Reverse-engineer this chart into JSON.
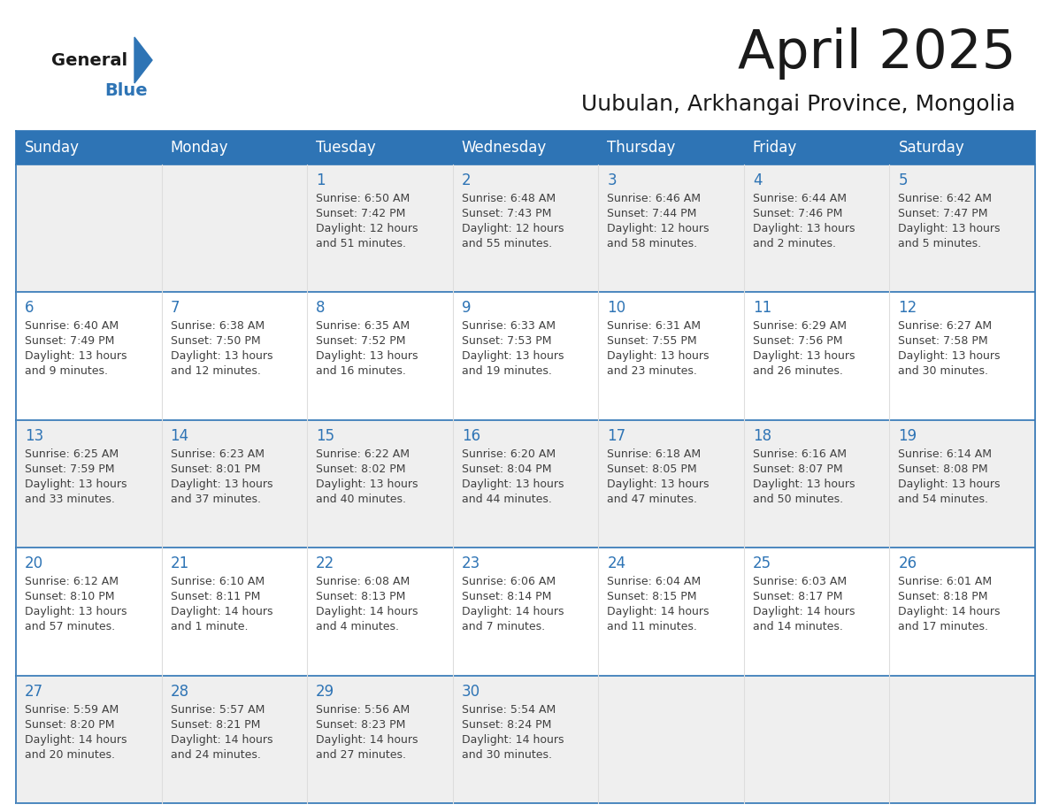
{
  "title": "April 2025",
  "subtitle": "Uubulan, Arkhangai Province, Mongolia",
  "days_of_week": [
    "Sunday",
    "Monday",
    "Tuesday",
    "Wednesday",
    "Thursday",
    "Friday",
    "Saturday"
  ],
  "header_bg_color": "#2E74B5",
  "header_text_color": "#FFFFFF",
  "cell_bg_even": "#EFEFEF",
  "cell_bg_odd": "#FFFFFF",
  "day_number_color": "#2E74B5",
  "text_color": "#404040",
  "border_color": "#2E74B5",
  "col_line_color": "#DDDDDD",
  "calendar_data": [
    [
      {
        "day": "",
        "sunrise": "",
        "sunset": "",
        "daylight": ""
      },
      {
        "day": "",
        "sunrise": "",
        "sunset": "",
        "daylight": ""
      },
      {
        "day": "1",
        "sunrise": "Sunrise: 6:50 AM",
        "sunset": "Sunset: 7:42 PM",
        "daylight": "Daylight: 12 hours and 51 minutes."
      },
      {
        "day": "2",
        "sunrise": "Sunrise: 6:48 AM",
        "sunset": "Sunset: 7:43 PM",
        "daylight": "Daylight: 12 hours and 55 minutes."
      },
      {
        "day": "3",
        "sunrise": "Sunrise: 6:46 AM",
        "sunset": "Sunset: 7:44 PM",
        "daylight": "Daylight: 12 hours and 58 minutes."
      },
      {
        "day": "4",
        "sunrise": "Sunrise: 6:44 AM",
        "sunset": "Sunset: 7:46 PM",
        "daylight": "Daylight: 13 hours and 2 minutes."
      },
      {
        "day": "5",
        "sunrise": "Sunrise: 6:42 AM",
        "sunset": "Sunset: 7:47 PM",
        "daylight": "Daylight: 13 hours and 5 minutes."
      }
    ],
    [
      {
        "day": "6",
        "sunrise": "Sunrise: 6:40 AM",
        "sunset": "Sunset: 7:49 PM",
        "daylight": "Daylight: 13 hours and 9 minutes."
      },
      {
        "day": "7",
        "sunrise": "Sunrise: 6:38 AM",
        "sunset": "Sunset: 7:50 PM",
        "daylight": "Daylight: 13 hours and 12 minutes."
      },
      {
        "day": "8",
        "sunrise": "Sunrise: 6:35 AM",
        "sunset": "Sunset: 7:52 PM",
        "daylight": "Daylight: 13 hours and 16 minutes."
      },
      {
        "day": "9",
        "sunrise": "Sunrise: 6:33 AM",
        "sunset": "Sunset: 7:53 PM",
        "daylight": "Daylight: 13 hours and 19 minutes."
      },
      {
        "day": "10",
        "sunrise": "Sunrise: 6:31 AM",
        "sunset": "Sunset: 7:55 PM",
        "daylight": "Daylight: 13 hours and 23 minutes."
      },
      {
        "day": "11",
        "sunrise": "Sunrise: 6:29 AM",
        "sunset": "Sunset: 7:56 PM",
        "daylight": "Daylight: 13 hours and 26 minutes."
      },
      {
        "day": "12",
        "sunrise": "Sunrise: 6:27 AM",
        "sunset": "Sunset: 7:58 PM",
        "daylight": "Daylight: 13 hours and 30 minutes."
      }
    ],
    [
      {
        "day": "13",
        "sunrise": "Sunrise: 6:25 AM",
        "sunset": "Sunset: 7:59 PM",
        "daylight": "Daylight: 13 hours and 33 minutes."
      },
      {
        "day": "14",
        "sunrise": "Sunrise: 6:23 AM",
        "sunset": "Sunset: 8:01 PM",
        "daylight": "Daylight: 13 hours and 37 minutes."
      },
      {
        "day": "15",
        "sunrise": "Sunrise: 6:22 AM",
        "sunset": "Sunset: 8:02 PM",
        "daylight": "Daylight: 13 hours and 40 minutes."
      },
      {
        "day": "16",
        "sunrise": "Sunrise: 6:20 AM",
        "sunset": "Sunset: 8:04 PM",
        "daylight": "Daylight: 13 hours and 44 minutes."
      },
      {
        "day": "17",
        "sunrise": "Sunrise: 6:18 AM",
        "sunset": "Sunset: 8:05 PM",
        "daylight": "Daylight: 13 hours and 47 minutes."
      },
      {
        "day": "18",
        "sunrise": "Sunrise: 6:16 AM",
        "sunset": "Sunset: 8:07 PM",
        "daylight": "Daylight: 13 hours and 50 minutes."
      },
      {
        "day": "19",
        "sunrise": "Sunrise: 6:14 AM",
        "sunset": "Sunset: 8:08 PM",
        "daylight": "Daylight: 13 hours and 54 minutes."
      }
    ],
    [
      {
        "day": "20",
        "sunrise": "Sunrise: 6:12 AM",
        "sunset": "Sunset: 8:10 PM",
        "daylight": "Daylight: 13 hours and 57 minutes."
      },
      {
        "day": "21",
        "sunrise": "Sunrise: 6:10 AM",
        "sunset": "Sunset: 8:11 PM",
        "daylight": "Daylight: 14 hours and 1 minute."
      },
      {
        "day": "22",
        "sunrise": "Sunrise: 6:08 AM",
        "sunset": "Sunset: 8:13 PM",
        "daylight": "Daylight: 14 hours and 4 minutes."
      },
      {
        "day": "23",
        "sunrise": "Sunrise: 6:06 AM",
        "sunset": "Sunset: 8:14 PM",
        "daylight": "Daylight: 14 hours and 7 minutes."
      },
      {
        "day": "24",
        "sunrise": "Sunrise: 6:04 AM",
        "sunset": "Sunset: 8:15 PM",
        "daylight": "Daylight: 14 hours and 11 minutes."
      },
      {
        "day": "25",
        "sunrise": "Sunrise: 6:03 AM",
        "sunset": "Sunset: 8:17 PM",
        "daylight": "Daylight: 14 hours and 14 minutes."
      },
      {
        "day": "26",
        "sunrise": "Sunrise: 6:01 AM",
        "sunset": "Sunset: 8:18 PM",
        "daylight": "Daylight: 14 hours and 17 minutes."
      }
    ],
    [
      {
        "day": "27",
        "sunrise": "Sunrise: 5:59 AM",
        "sunset": "Sunset: 8:20 PM",
        "daylight": "Daylight: 14 hours and 20 minutes."
      },
      {
        "day": "28",
        "sunrise": "Sunrise: 5:57 AM",
        "sunset": "Sunset: 8:21 PM",
        "daylight": "Daylight: 14 hours and 24 minutes."
      },
      {
        "day": "29",
        "sunrise": "Sunrise: 5:56 AM",
        "sunset": "Sunset: 8:23 PM",
        "daylight": "Daylight: 14 hours and 27 minutes."
      },
      {
        "day": "30",
        "sunrise": "Sunrise: 5:54 AM",
        "sunset": "Sunset: 8:24 PM",
        "daylight": "Daylight: 14 hours and 30 minutes."
      },
      {
        "day": "",
        "sunrise": "",
        "sunset": "",
        "daylight": ""
      },
      {
        "day": "",
        "sunrise": "",
        "sunset": "",
        "daylight": ""
      },
      {
        "day": "",
        "sunrise": "",
        "sunset": "",
        "daylight": ""
      }
    ]
  ]
}
